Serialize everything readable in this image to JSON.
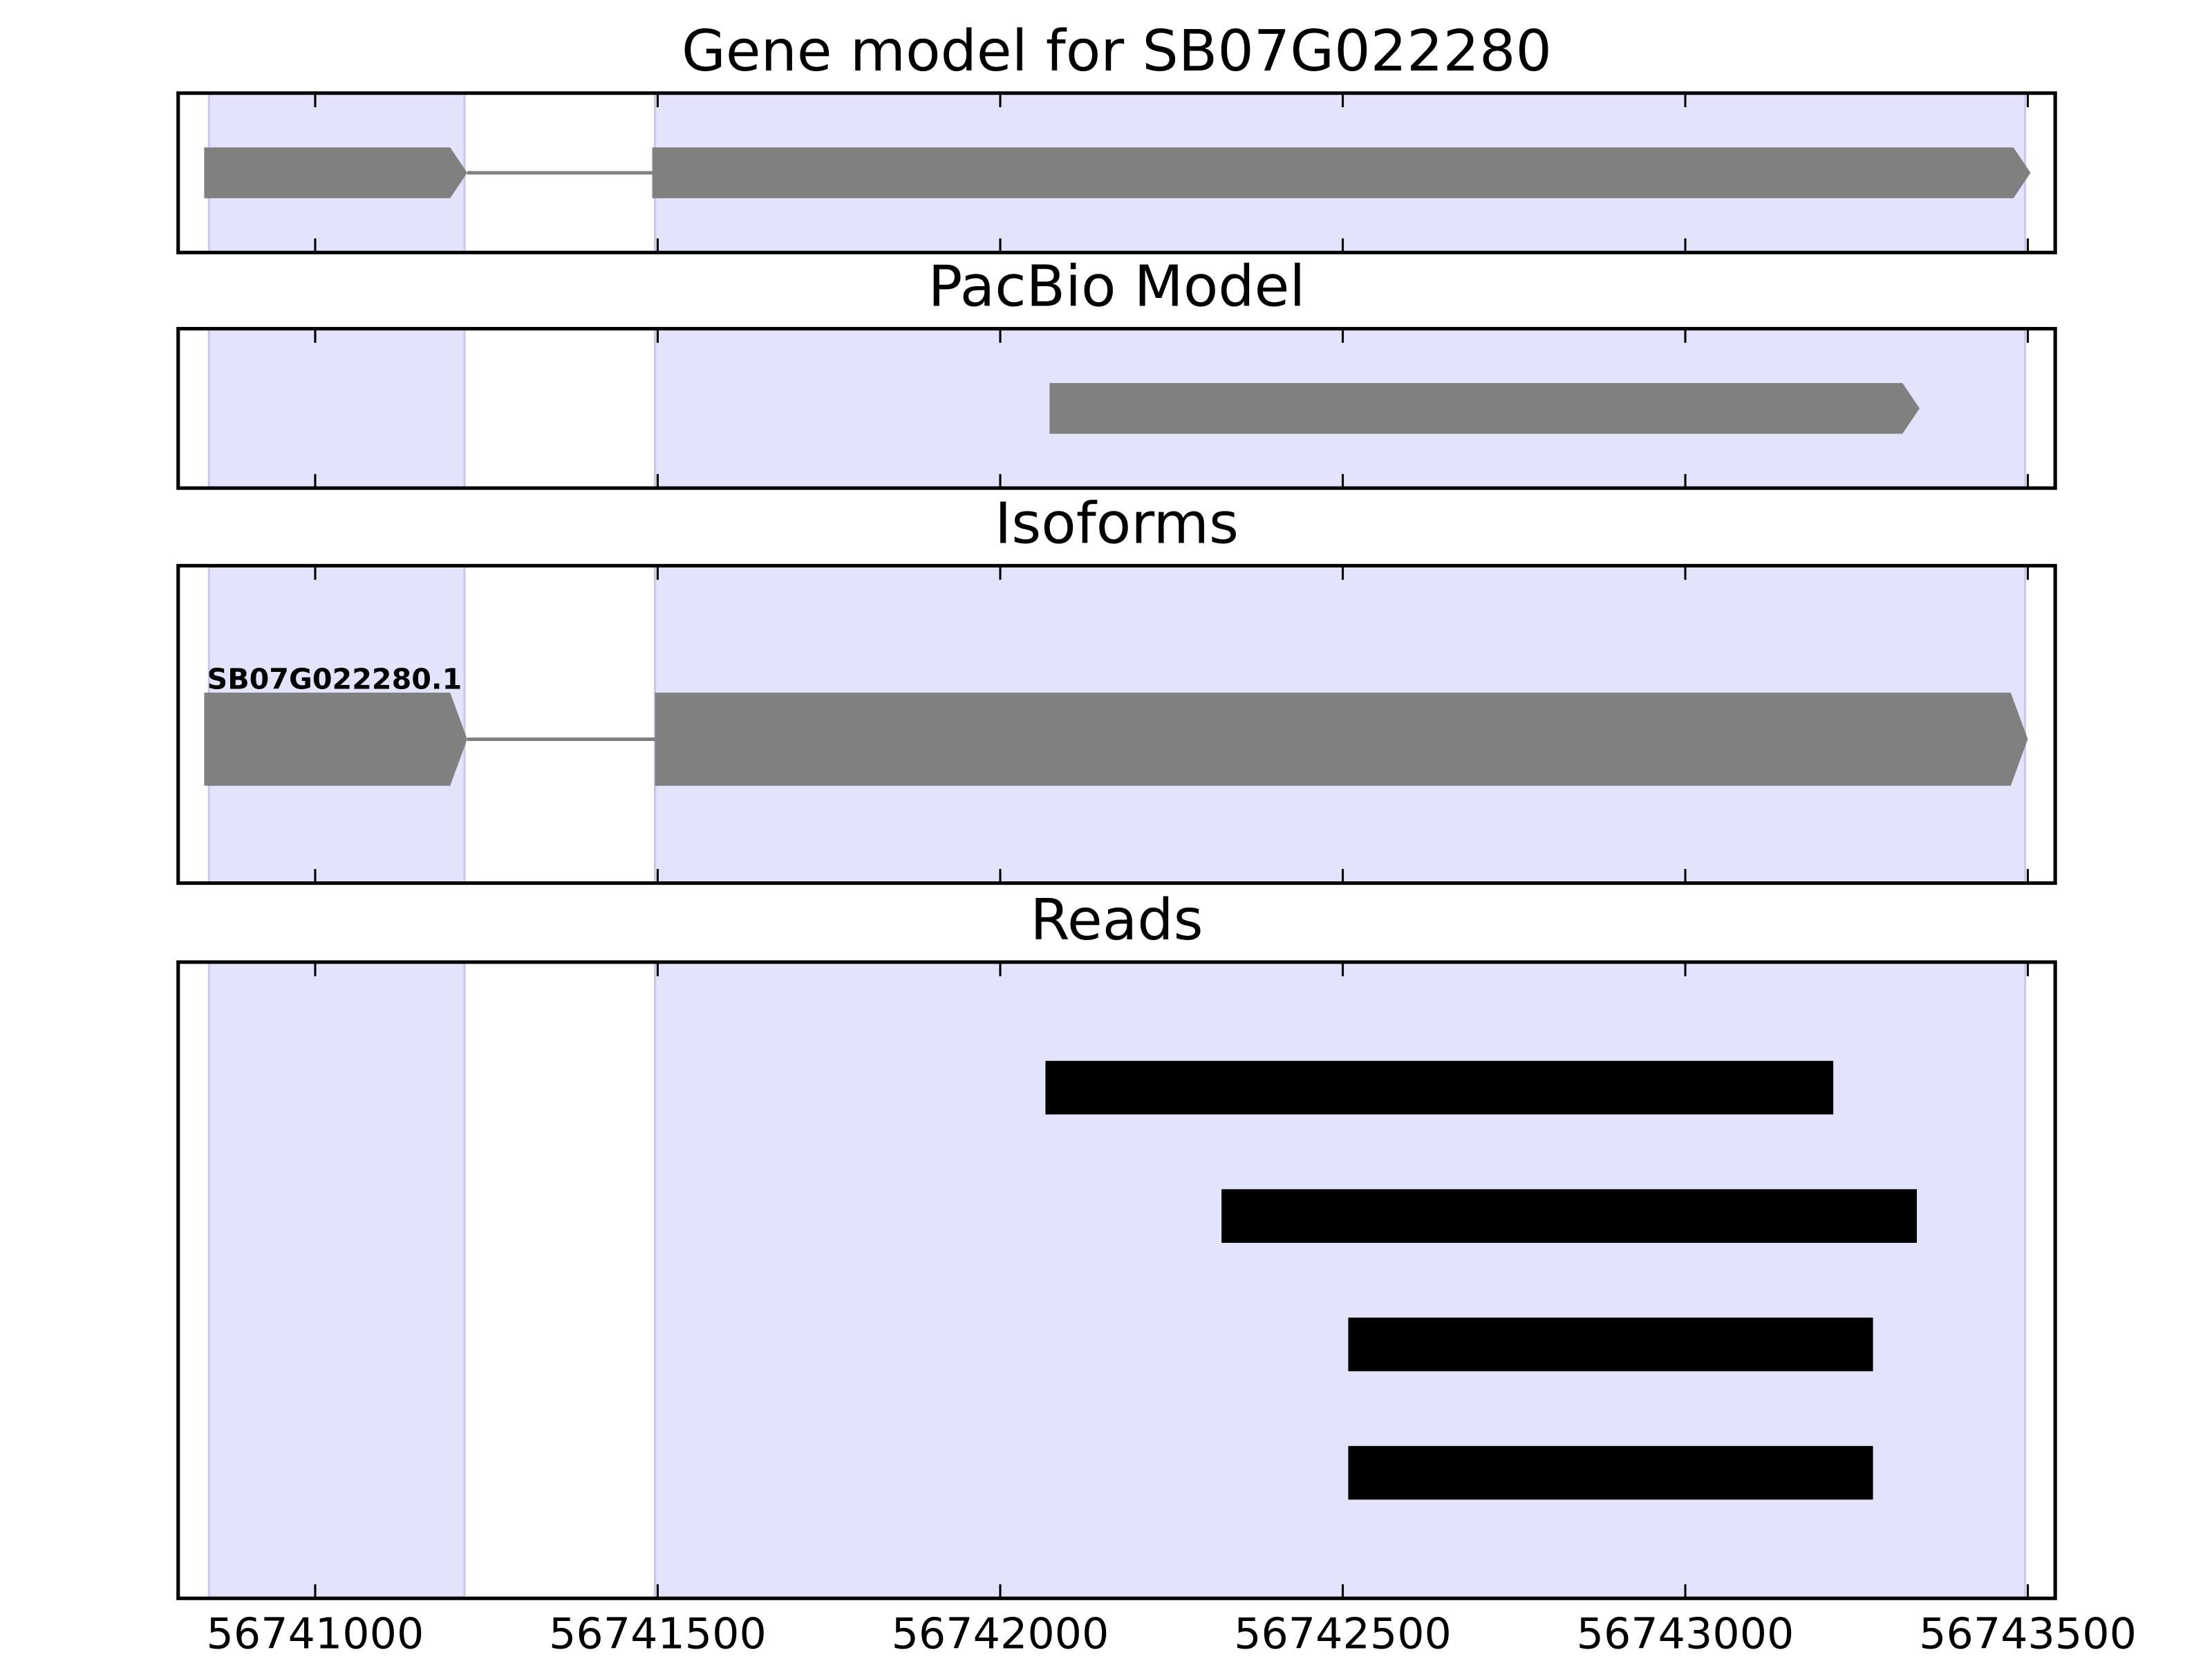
{
  "chart_data": [
    {
      "type": "gene-track",
      "title": "Gene model for SB07G022280",
      "xlim": [
        56740800,
        56743540
      ],
      "xticks": [
        56741000,
        56741500,
        56742000,
        56742500,
        56743000,
        56743500
      ],
      "regions": [
        [
          56740845,
          56741218
        ],
        [
          56741496,
          56743496
        ]
      ],
      "region_color": "#e3e3fc",
      "features": [
        {
          "exons": [
            [
              56740838,
              56741222
            ],
            [
              56741492,
              56743504
            ]
          ]
        }
      ],
      "color": "#808080"
    },
    {
      "type": "gene-track",
      "title": "PacBio Model",
      "xlim": [
        56740800,
        56743540
      ],
      "xticks": [
        56741000,
        56741500,
        56742000,
        56742500,
        56743000,
        56743500
      ],
      "regions": [
        [
          56740845,
          56741218
        ],
        [
          56741496,
          56743496
        ]
      ],
      "region_color": "#e3e3fc",
      "features": [
        {
          "exons": [
            [
              56742072,
              56743342
            ]
          ]
        }
      ],
      "color": "#808080"
    },
    {
      "type": "gene-track",
      "title": "Isoforms",
      "xlim": [
        56740800,
        56743540
      ],
      "xticks": [
        56741000,
        56741500,
        56742000,
        56742500,
        56743000,
        56743500
      ],
      "regions": [
        [
          56740845,
          56741218
        ],
        [
          56741496,
          56743496
        ]
      ],
      "region_color": "#e3e3fc",
      "features": [
        {
          "name": "SB07G022280.1",
          "exons": [
            [
              56740838,
              56741222
            ],
            [
              56741496,
              56743500
            ]
          ]
        }
      ],
      "color": "#808080"
    },
    {
      "type": "reads",
      "title": "Reads",
      "xlim": [
        56740800,
        56743540
      ],
      "xticks": [
        56741000,
        56741500,
        56742000,
        56742500,
        56743000,
        56743500
      ],
      "regions": [
        [
          56740845,
          56741218
        ],
        [
          56741496,
          56743496
        ]
      ],
      "region_color": "#e3e3fc",
      "reads": [
        [
          56742066,
          56743216
        ],
        [
          56742323,
          56743338
        ],
        [
          56742508,
          56743274
        ],
        [
          56742508,
          56743274
        ]
      ],
      "color": "#000000"
    }
  ]
}
